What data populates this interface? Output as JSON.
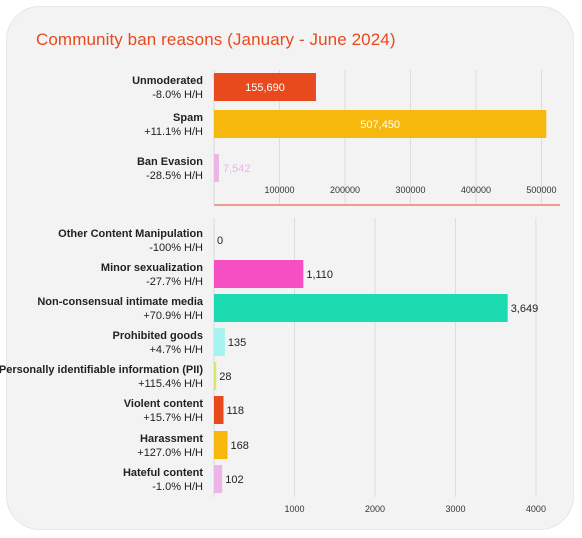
{
  "title": "Community ban reasons (January - June 2024)",
  "chart_data": [
    {
      "type": "bar",
      "orientation": "horizontal",
      "xlim": [
        0,
        510000
      ],
      "xticks": [
        100000,
        200000,
        300000,
        400000,
        500000
      ],
      "grid": true,
      "categories": [
        {
          "name": "Unmoderated",
          "change": "-8.0% H/H",
          "value": 155690,
          "label": "155,690",
          "color": "#e8491d",
          "label_inside": true
        },
        {
          "name": "Spam",
          "change": "+11.1% H/H",
          "value": 507450,
          "label": "507,450",
          "color": "#f6b80c",
          "label_inside": true
        },
        {
          "name": "Ban Evasion",
          "change": "-28.5% H/H",
          "value": 7542,
          "label": "7,542",
          "color": "#ecb5e6",
          "label_inside": false
        }
      ]
    },
    {
      "type": "bar",
      "orientation": "horizontal",
      "xlim": [
        0,
        4100
      ],
      "xticks": [
        1000,
        2000,
        3000,
        4000
      ],
      "grid": true,
      "categories": [
        {
          "name": "Other Content Manipulation",
          "change": "-100% H/H",
          "value": 0,
          "label": "0",
          "color": "#ffffff"
        },
        {
          "name": "Minor sexualization",
          "change": "-27.7% H/H",
          "value": 1110,
          "label": "1,110",
          "color": "#f54fc3"
        },
        {
          "name": "Non-consensual intimate media",
          "change": "+70.9% H/H",
          "value": 3649,
          "label": "3,649",
          "color": "#1ddbb0"
        },
        {
          "name": "Prohibited goods",
          "change": "+4.7% H/H",
          "value": 135,
          "label": "135",
          "color": "#a6f2ee"
        },
        {
          "name": "Personally identifiable information (PII)",
          "change": "+115.4% H/H",
          "value": 28,
          "label": "28",
          "color": "#d4e86a"
        },
        {
          "name": "Violent content",
          "change": "+15.7% H/H",
          "value": 118,
          "label": "118",
          "color": "#e8491d"
        },
        {
          "name": "Harassment",
          "change": "+127.0% H/H",
          "value": 168,
          "label": "168",
          "color": "#f6b80c"
        },
        {
          "name": "Hateful content",
          "change": "-1.0% H/H",
          "value": 102,
          "label": "102",
          "color": "#ecb5e6"
        }
      ]
    }
  ]
}
